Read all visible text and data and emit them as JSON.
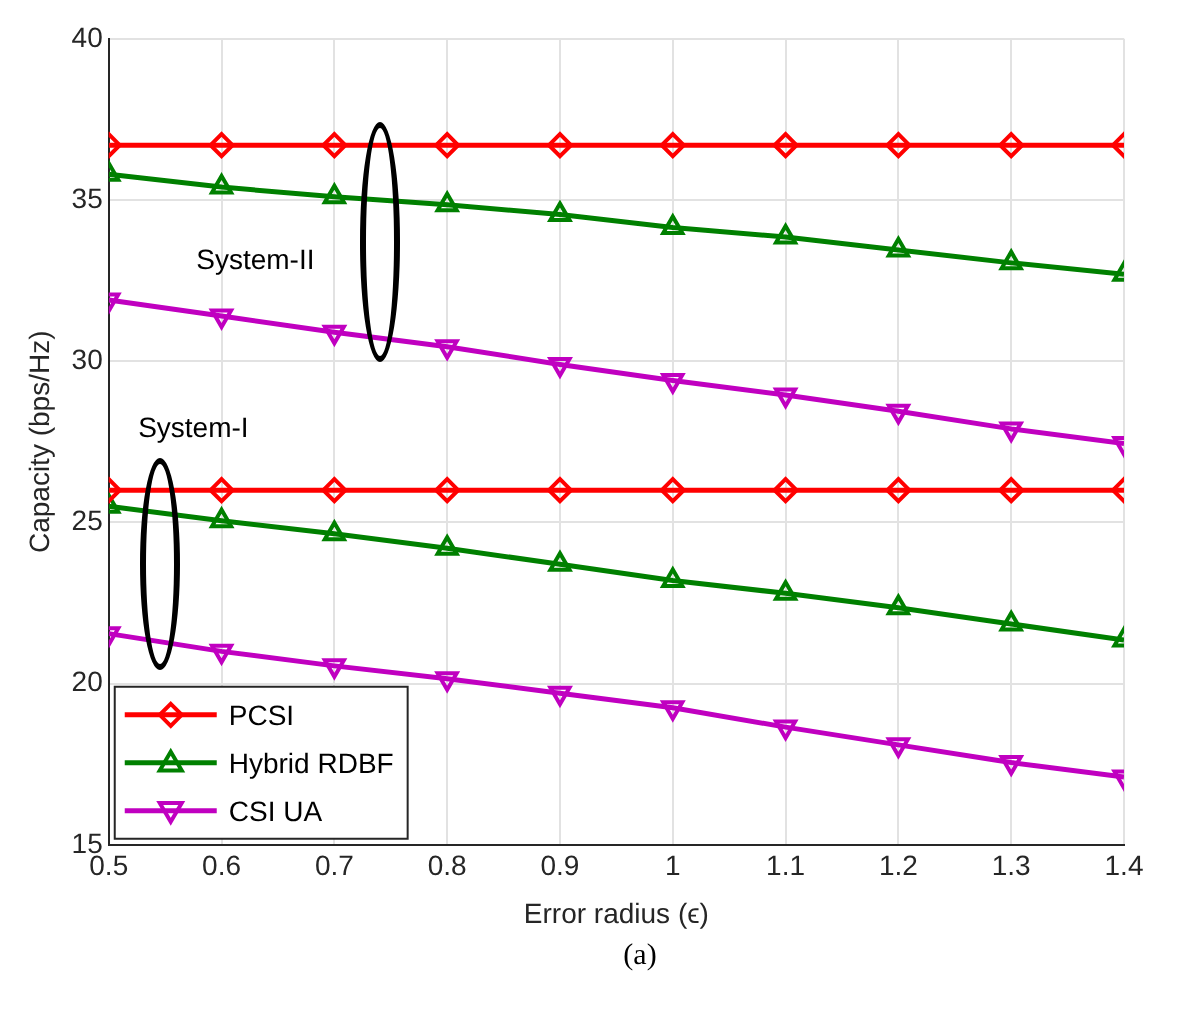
{
  "chart_data": {
    "type": "line",
    "xlabel": "Error radius (ϵ)",
    "ylabel": "Capacity (bps/Hz)",
    "x": [
      0.5,
      0.6,
      0.7,
      0.8,
      0.9,
      1.0,
      1.1,
      1.2,
      1.3,
      1.4
    ],
    "xlim": [
      0.5,
      1.4
    ],
    "xticks": [
      0.5,
      0.6,
      0.7,
      0.8,
      0.9,
      1,
      1.1,
      1.2,
      1.3,
      1.4
    ],
    "ylim": [
      15,
      40
    ],
    "yticks": [
      15,
      20,
      25,
      30,
      35,
      40
    ],
    "grid": true,
    "legend": "bottom left",
    "line_style": "solid",
    "series": [
      {
        "name": "PCSI",
        "color": "#ff0000",
        "marker": "diamond",
        "values": [
          36.7,
          36.7,
          36.7,
          36.7,
          36.7,
          36.7,
          36.7,
          36.7,
          36.7,
          36.7
        ]
      },
      {
        "name": "Hybrid RDBF",
        "color": "#008000",
        "marker": "triangle",
        "values": [
          35.8,
          35.4,
          35.1,
          34.85,
          34.55,
          34.15,
          33.85,
          33.45,
          33.05,
          32.7
        ]
      },
      {
        "name": "CSI UA",
        "color": "#c000c0",
        "marker": "triangle-down",
        "values": [
          31.9,
          31.4,
          30.9,
          30.45,
          29.9,
          29.4,
          28.95,
          28.45,
          27.9,
          27.45
        ]
      },
      {
        "color": "#ff0000",
        "marker": "diamond",
        "values": [
          26.0,
          26.0,
          26.0,
          26.0,
          26.0,
          26.0,
          26.0,
          26.0,
          26.0,
          26.0
        ]
      },
      {
        "color": "#008000",
        "marker": "triangle",
        "values": [
          25.5,
          25.05,
          24.65,
          24.2,
          23.7,
          23.2,
          22.8,
          22.35,
          21.85,
          21.35
        ]
      },
      {
        "color": "#c000c0",
        "marker": "triangle-down",
        "values": [
          21.55,
          21.0,
          20.55,
          20.15,
          19.7,
          19.25,
          18.65,
          18.1,
          17.55,
          17.1
        ]
      }
    ],
    "annotations": [
      "System-II",
      "System-I",
      "(a)"
    ]
  }
}
